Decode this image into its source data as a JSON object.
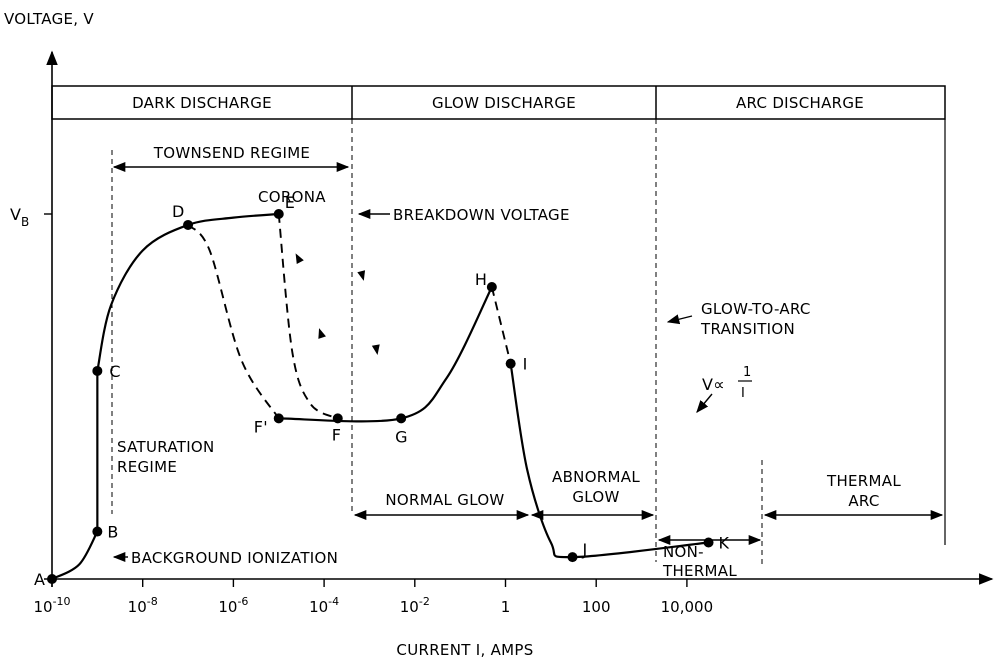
{
  "chart_data": {
    "type": "line",
    "xlabel": "CURRENT I, AMPS",
    "ylabel": "VOLTAGE, V",
    "x_scale": "log",
    "y_scale": "arbitrary",
    "x_ticks": [
      {
        "value": 1e-10,
        "base": "10",
        "exp": "-10"
      },
      {
        "value": 1e-08,
        "base": "10",
        "exp": "-8"
      },
      {
        "value": 1e-06,
        "base": "10",
        "exp": "-6"
      },
      {
        "value": 0.0001,
        "base": "10",
        "exp": "-4"
      },
      {
        "value": 0.01,
        "base": "10",
        "exp": "-2"
      },
      {
        "value": 1,
        "label": "1"
      },
      {
        "value": 100,
        "label": "100"
      },
      {
        "value": 10000,
        "label": "10,000"
      }
    ],
    "y_ticks": [
      {
        "value": 1.0,
        "base": "V",
        "sub": "B"
      }
    ],
    "regions": [
      {
        "label": "DARK DISCHARGE",
        "from": 1e-10,
        "to": 1e-05
      },
      {
        "label": "GLOW DISCHARGE",
        "from": 1e-05,
        "to": 0.5
      },
      {
        "label": "ARC DISCHARGE",
        "from": 0.5,
        "to": 100000.0
      }
    ],
    "points": [
      {
        "label": "A",
        "x": 1e-10,
        "y": 0.0
      },
      {
        "label": "B",
        "x": 1e-09,
        "y": 0.13
      },
      {
        "label": "C",
        "x": 1e-09,
        "y": 0.57
      },
      {
        "label": "D",
        "x": 1e-07,
        "y": 0.97
      },
      {
        "label": "E",
        "x": 1e-05,
        "y": 1.0
      },
      {
        "label": "F'",
        "x": 1e-05,
        "y": 0.44
      },
      {
        "label": "F",
        "x": 0.0002,
        "y": 0.44
      },
      {
        "label": "G",
        "x": 0.005,
        "y": 0.44
      },
      {
        "label": "H",
        "x": 0.5,
        "y": 0.8
      },
      {
        "label": "I",
        "x": 1.3,
        "y": 0.59
      },
      {
        "label": "J",
        "x": 30,
        "y": 0.06
      },
      {
        "label": "K",
        "x": 30000,
        "y": 0.1
      }
    ],
    "series": [
      {
        "style": "solid",
        "points": [
          [
            1e-10,
            0.0
          ],
          [
            4e-10,
            0.04
          ],
          [
            1e-09,
            0.13
          ]
        ]
      },
      {
        "style": "solid",
        "points": [
          [
            1e-09,
            0.13
          ],
          [
            1e-09,
            0.57
          ]
        ]
      },
      {
        "style": "solid",
        "points": [
          [
            1e-09,
            0.57
          ],
          [
            2e-09,
            0.75
          ],
          [
            1e-08,
            0.9
          ],
          [
            1e-07,
            0.97
          ],
          [
            1e-06,
            0.99
          ],
          [
            1e-05,
            1.0
          ]
        ]
      },
      {
        "style": "dashed",
        "points": [
          [
            1e-07,
            0.97
          ],
          [
            3e-07,
            0.9
          ],
          [
            1.5e-06,
            0.6
          ],
          [
            1e-05,
            0.44
          ]
        ]
      },
      {
        "style": "dashed",
        "points": [
          [
            1e-05,
            1.0
          ],
          [
            2e-05,
            0.62
          ],
          [
            5e-05,
            0.48
          ],
          [
            0.0002,
            0.44
          ]
        ]
      },
      {
        "style": "solid",
        "points": [
          [
            1e-05,
            0.44
          ],
          [
            0.005,
            0.44
          ],
          [
            0.05,
            0.55
          ],
          [
            0.5,
            0.8
          ]
        ]
      },
      {
        "style": "dashed",
        "points": [
          [
            0.5,
            0.8
          ],
          [
            1.3,
            0.59
          ]
        ]
      },
      {
        "style": "solid",
        "points": [
          [
            1.3,
            0.59
          ],
          [
            3,
            0.3
          ],
          [
            10,
            0.1
          ],
          [
            30,
            0.06
          ],
          [
            30000,
            0.1
          ]
        ]
      }
    ],
    "annotations": [
      {
        "text": "TOWNSEND REGIME"
      },
      {
        "text": "CORONA"
      },
      {
        "text": "BREAKDOWN VOLTAGE"
      },
      {
        "text": "GLOW-TO-ARC",
        "line2": "TRANSITION"
      },
      {
        "text": "SATURATION",
        "line2": "REGIME"
      },
      {
        "text": "BACKGROUND IONIZATION"
      },
      {
        "text": "NORMAL GLOW"
      },
      {
        "text": "ABNORMAL",
        "line2": "GLOW"
      },
      {
        "text": "NON-",
        "line2": "THERMAL"
      },
      {
        "text": "THERMAL",
        "line2": "ARC"
      },
      {
        "text": "V∝",
        "frac_num": "1",
        "frac_den": "I"
      }
    ]
  }
}
